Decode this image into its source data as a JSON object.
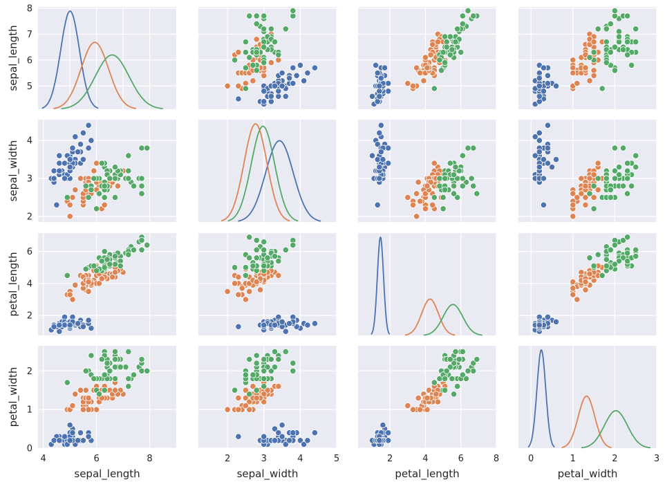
{
  "chart_data": {
    "type": "scatter",
    "variables": [
      "sepal_length",
      "sepal_width",
      "petal_length",
      "petal_width"
    ],
    "series": [
      {
        "name": "",
        "color": "#4c72b0"
      },
      {
        "name": "",
        "color": "#dd8452"
      },
      {
        "name": "",
        "color": "#55a868"
      }
    ],
    "axes": {
      "sepal_length": {
        "lim": [
          3.8,
          9.0
        ],
        "ticks": [
          4,
          6,
          8
        ],
        "kde_ticks": [
          5,
          6,
          7,
          8
        ],
        "ylim": [
          4.1,
          8.05
        ],
        "yticks": [
          5,
          6,
          7,
          8
        ]
      },
      "sepal_width": {
        "lim": [
          1.2,
          5.0
        ],
        "ticks": [
          2,
          3,
          4,
          5
        ],
        "ylim": [
          1.85,
          4.55
        ],
        "yticks": [
          2,
          3,
          4
        ]
      },
      "petal_length": {
        "lim": [
          0.2,
          8.0
        ],
        "ticks": [
          2,
          4,
          6,
          8
        ],
        "ylim": [
          0.75,
          7.15
        ],
        "yticks": [
          2,
          4,
          6
        ]
      },
      "petal_width": {
        "lim": [
          -0.3,
          3.0
        ],
        "ticks": [
          0,
          1,
          2,
          3
        ],
        "ylim": [
          0.0,
          2.65
        ],
        "yticks": [
          0,
          1,
          2
        ]
      }
    },
    "points": {
      "0": [
        [
          5.1,
          3.5,
          1.4,
          0.2
        ],
        [
          4.9,
          3.0,
          1.4,
          0.2
        ],
        [
          4.7,
          3.2,
          1.3,
          0.2
        ],
        [
          4.6,
          3.1,
          1.5,
          0.2
        ],
        [
          5.0,
          3.6,
          1.4,
          0.2
        ],
        [
          5.4,
          3.9,
          1.7,
          0.4
        ],
        [
          4.6,
          3.4,
          1.4,
          0.3
        ],
        [
          5.0,
          3.4,
          1.5,
          0.2
        ],
        [
          4.4,
          2.9,
          1.4,
          0.2
        ],
        [
          4.9,
          3.1,
          1.5,
          0.1
        ],
        [
          5.4,
          3.7,
          1.5,
          0.2
        ],
        [
          4.8,
          3.4,
          1.6,
          0.2
        ],
        [
          4.8,
          3.0,
          1.4,
          0.1
        ],
        [
          4.3,
          3.0,
          1.1,
          0.1
        ],
        [
          5.8,
          4.0,
          1.2,
          0.2
        ],
        [
          5.7,
          4.4,
          1.5,
          0.4
        ],
        [
          5.4,
          3.9,
          1.3,
          0.4
        ],
        [
          5.1,
          3.5,
          1.4,
          0.3
        ],
        [
          5.7,
          3.8,
          1.7,
          0.3
        ],
        [
          5.1,
          3.8,
          1.5,
          0.3
        ],
        [
          5.4,
          3.4,
          1.7,
          0.2
        ],
        [
          5.1,
          3.7,
          1.5,
          0.4
        ],
        [
          4.6,
          3.6,
          1.0,
          0.2
        ],
        [
          5.1,
          3.3,
          1.7,
          0.5
        ],
        [
          4.8,
          3.4,
          1.9,
          0.2
        ],
        [
          5.0,
          3.0,
          1.6,
          0.2
        ],
        [
          5.0,
          3.4,
          1.6,
          0.4
        ],
        [
          5.2,
          3.5,
          1.5,
          0.2
        ],
        [
          5.2,
          3.4,
          1.4,
          0.2
        ],
        [
          4.7,
          3.2,
          1.6,
          0.2
        ],
        [
          4.8,
          3.1,
          1.6,
          0.2
        ],
        [
          5.4,
          3.4,
          1.5,
          0.4
        ],
        [
          5.2,
          4.1,
          1.5,
          0.1
        ],
        [
          5.5,
          4.2,
          1.4,
          0.2
        ],
        [
          4.9,
          3.1,
          1.5,
          0.2
        ],
        [
          5.0,
          3.2,
          1.2,
          0.2
        ],
        [
          5.5,
          3.5,
          1.3,
          0.2
        ],
        [
          4.9,
          3.6,
          1.4,
          0.1
        ],
        [
          4.4,
          3.0,
          1.3,
          0.2
        ],
        [
          5.1,
          3.4,
          1.5,
          0.2
        ],
        [
          5.0,
          3.5,
          1.3,
          0.3
        ],
        [
          4.5,
          2.3,
          1.3,
          0.3
        ],
        [
          4.4,
          3.2,
          1.3,
          0.2
        ],
        [
          5.0,
          3.5,
          1.6,
          0.6
        ],
        [
          5.1,
          3.8,
          1.9,
          0.4
        ],
        [
          4.8,
          3.0,
          1.4,
          0.3
        ],
        [
          5.1,
          3.8,
          1.6,
          0.2
        ],
        [
          4.6,
          3.2,
          1.4,
          0.2
        ],
        [
          5.3,
          3.7,
          1.5,
          0.2
        ],
        [
          5.0,
          3.3,
          1.4,
          0.2
        ]
      ],
      "1": [
        [
          7.0,
          3.2,
          4.7,
          1.4
        ],
        [
          6.4,
          3.2,
          4.5,
          1.5
        ],
        [
          6.9,
          3.1,
          4.9,
          1.5
        ],
        [
          5.5,
          2.3,
          4.0,
          1.3
        ],
        [
          6.5,
          2.8,
          4.6,
          1.5
        ],
        [
          5.7,
          2.8,
          4.5,
          1.3
        ],
        [
          6.3,
          3.3,
          4.7,
          1.6
        ],
        [
          4.9,
          2.4,
          3.3,
          1.0
        ],
        [
          6.6,
          2.9,
          4.6,
          1.3
        ],
        [
          5.2,
          2.7,
          3.9,
          1.4
        ],
        [
          5.0,
          2.0,
          3.5,
          1.0
        ],
        [
          5.9,
          3.0,
          4.2,
          1.5
        ],
        [
          6.0,
          2.2,
          4.0,
          1.0
        ],
        [
          6.1,
          2.9,
          4.7,
          1.4
        ],
        [
          5.6,
          2.9,
          3.6,
          1.3
        ],
        [
          6.7,
          3.1,
          4.4,
          1.4
        ],
        [
          5.6,
          3.0,
          4.5,
          1.5
        ],
        [
          5.8,
          2.7,
          4.1,
          1.0
        ],
        [
          6.2,
          2.2,
          4.5,
          1.5
        ],
        [
          5.6,
          2.5,
          3.9,
          1.1
        ],
        [
          5.9,
          3.2,
          4.8,
          1.8
        ],
        [
          6.1,
          2.8,
          4.0,
          1.3
        ],
        [
          6.3,
          2.5,
          4.9,
          1.5
        ],
        [
          6.1,
          2.8,
          4.7,
          1.2
        ],
        [
          6.4,
          2.9,
          4.3,
          1.3
        ],
        [
          6.6,
          3.0,
          4.4,
          1.4
        ],
        [
          6.8,
          2.8,
          4.8,
          1.4
        ],
        [
          6.7,
          3.0,
          5.0,
          1.7
        ],
        [
          6.0,
          2.9,
          4.5,
          1.5
        ],
        [
          5.7,
          2.6,
          3.5,
          1.0
        ],
        [
          5.5,
          2.4,
          3.8,
          1.1
        ],
        [
          5.5,
          2.4,
          3.7,
          1.0
        ],
        [
          5.8,
          2.7,
          3.9,
          1.2
        ],
        [
          6.0,
          2.7,
          5.1,
          1.6
        ],
        [
          5.4,
          3.0,
          4.5,
          1.5
        ],
        [
          6.0,
          3.4,
          4.5,
          1.6
        ],
        [
          6.7,
          3.1,
          4.7,
          1.5
        ],
        [
          6.3,
          2.3,
          4.4,
          1.3
        ],
        [
          5.6,
          3.0,
          4.1,
          1.3
        ],
        [
          5.5,
          2.5,
          4.0,
          1.3
        ],
        [
          5.5,
          2.6,
          4.4,
          1.2
        ],
        [
          6.1,
          3.0,
          4.6,
          1.4
        ],
        [
          5.8,
          2.6,
          4.0,
          1.2
        ],
        [
          5.0,
          2.3,
          3.3,
          1.0
        ],
        [
          5.6,
          2.7,
          4.2,
          1.3
        ],
        [
          5.7,
          3.0,
          4.2,
          1.2
        ],
        [
          5.7,
          2.9,
          4.2,
          1.3
        ],
        [
          6.2,
          2.9,
          4.3,
          1.3
        ],
        [
          5.1,
          2.5,
          3.0,
          1.1
        ],
        [
          5.7,
          2.8,
          4.1,
          1.3
        ]
      ],
      "2": [
        [
          6.3,
          3.3,
          6.0,
          2.5
        ],
        [
          5.8,
          2.7,
          5.1,
          1.9
        ],
        [
          7.1,
          3.0,
          5.9,
          2.1
        ],
        [
          6.3,
          2.9,
          5.6,
          1.8
        ],
        [
          6.5,
          3.0,
          5.8,
          2.2
        ],
        [
          7.6,
          3.0,
          6.6,
          2.1
        ],
        [
          4.9,
          2.5,
          4.5,
          1.7
        ],
        [
          7.3,
          2.9,
          6.3,
          1.8
        ],
        [
          6.7,
          2.5,
          5.8,
          1.8
        ],
        [
          7.2,
          3.6,
          6.1,
          2.5
        ],
        [
          6.5,
          3.2,
          5.1,
          2.0
        ],
        [
          6.4,
          2.7,
          5.3,
          1.9
        ],
        [
          6.8,
          3.0,
          5.5,
          2.1
        ],
        [
          5.7,
          2.5,
          5.0,
          2.0
        ],
        [
          5.8,
          2.8,
          5.1,
          2.4
        ],
        [
          6.4,
          3.2,
          5.3,
          2.3
        ],
        [
          6.5,
          3.0,
          5.5,
          1.8
        ],
        [
          7.7,
          3.8,
          6.7,
          2.2
        ],
        [
          7.7,
          2.6,
          6.9,
          2.3
        ],
        [
          6.0,
          2.2,
          5.0,
          1.5
        ],
        [
          6.9,
          3.2,
          5.7,
          2.3
        ],
        [
          5.6,
          2.8,
          4.9,
          2.0
        ],
        [
          7.7,
          2.8,
          6.7,
          2.0
        ],
        [
          6.3,
          2.7,
          4.9,
          1.8
        ],
        [
          6.7,
          3.3,
          5.7,
          2.1
        ],
        [
          7.2,
          3.2,
          6.0,
          1.8
        ],
        [
          6.2,
          2.8,
          4.8,
          1.8
        ],
        [
          6.1,
          3.0,
          4.9,
          1.8
        ],
        [
          6.4,
          2.8,
          5.6,
          2.1
        ],
        [
          7.2,
          3.0,
          5.8,
          1.6
        ],
        [
          7.4,
          2.8,
          6.1,
          1.9
        ],
        [
          7.9,
          3.8,
          6.4,
          2.0
        ],
        [
          6.4,
          2.8,
          5.6,
          2.2
        ],
        [
          6.3,
          2.8,
          5.1,
          1.5
        ],
        [
          6.1,
          2.6,
          5.6,
          1.4
        ],
        [
          7.7,
          3.0,
          6.1,
          2.3
        ],
        [
          6.3,
          3.4,
          5.6,
          2.4
        ],
        [
          6.4,
          3.1,
          5.5,
          1.8
        ],
        [
          6.0,
          3.0,
          4.8,
          1.8
        ],
        [
          6.9,
          3.1,
          5.4,
          2.1
        ],
        [
          6.7,
          3.1,
          5.6,
          2.4
        ],
        [
          6.9,
          3.1,
          5.1,
          2.3
        ],
        [
          5.8,
          2.7,
          5.1,
          1.9
        ],
        [
          6.8,
          3.2,
          5.9,
          2.3
        ],
        [
          6.7,
          3.3,
          5.7,
          2.5
        ],
        [
          6.7,
          3.0,
          5.2,
          2.3
        ],
        [
          6.3,
          2.5,
          5.0,
          1.9
        ],
        [
          6.5,
          3.0,
          5.2,
          2.0
        ],
        [
          6.2,
          3.4,
          5.4,
          2.3
        ],
        [
          5.9,
          3.0,
          5.1,
          1.8
        ]
      ]
    },
    "kde": {
      "0": {
        "mean": [
          5.006,
          3.428,
          1.462,
          0.246
        ],
        "sd": [
          0.352,
          0.379,
          0.174,
          0.105
        ]
      },
      "1": {
        "mean": [
          5.936,
          2.77,
          4.26,
          1.326
        ],
        "sd": [
          0.516,
          0.314,
          0.47,
          0.198
        ]
      },
      "2": {
        "mean": [
          6.588,
          2.974,
          5.552,
          2.026
        ],
        "sd": [
          0.636,
          0.322,
          0.552,
          0.275
        ]
      }
    },
    "grid": true,
    "legend": "none"
  }
}
